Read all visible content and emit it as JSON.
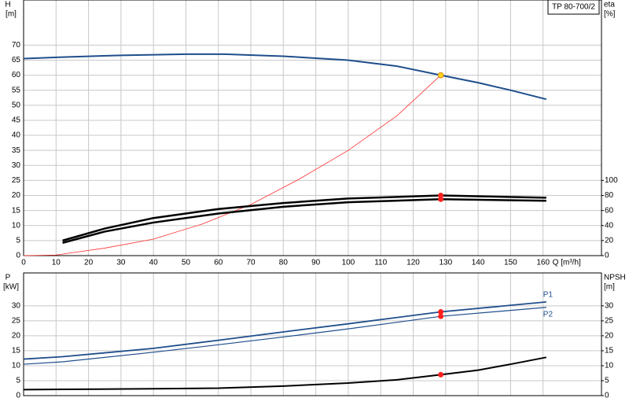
{
  "chart_data": [
    {
      "type": "line",
      "title": "TP 80-700/2",
      "y_label": "H",
      "y_unit": "[m]",
      "y2_label": "eta",
      "y2_unit": "[%]",
      "x_label": "Q [m³/h]",
      "xlim": [
        0,
        178
      ],
      "xticks": [
        0,
        10,
        20,
        30,
        40,
        50,
        60,
        70,
        80,
        90,
        100,
        110,
        120,
        130,
        140,
        150,
        160
      ],
      "ylim": [
        0,
        85
      ],
      "yticks": [
        0,
        5,
        10,
        15,
        20,
        25,
        30,
        35,
        40,
        45,
        50,
        55,
        60,
        65,
        70
      ],
      "y2lim": [
        0,
        340
      ],
      "y2ticks": [
        0,
        20,
        40,
        60,
        80,
        100
      ],
      "grid": true,
      "series": [
        {
          "color": "#1f4e8c",
          "width": 2,
          "x": [
            0,
            12,
            30,
            50,
            62,
            80,
            100,
            115,
            128.5,
            140,
            150,
            161
          ],
          "values": [
            65.5,
            66,
            66.6,
            67,
            67,
            66.3,
            65,
            63,
            60,
            57.5,
            55,
            52
          ]
        },
        {
          "color": "#ff3030",
          "width": 0.8,
          "x": [
            0,
            10,
            25,
            40,
            55,
            70,
            85,
            100,
            115,
            128.5
          ],
          "values": [
            0,
            0.2,
            2.5,
            5.5,
            10.5,
            17,
            25.5,
            35,
            46.5,
            60
          ]
        },
        {
          "color": "#000000",
          "width": 2.5,
          "axis": "y2",
          "x": [
            12,
            25,
            40,
            60,
            80,
            100,
            128.5,
            161
          ],
          "values": [
            20,
            36,
            50,
            62,
            70,
            76,
            80,
            77
          ]
        },
        {
          "color": "#000000",
          "width": 2.5,
          "axis": "y2",
          "x": [
            12,
            25,
            40,
            60,
            80,
            100,
            128.5,
            161
          ],
          "values": [
            17,
            32,
            44,
            56,
            65,
            71,
            75,
            73
          ]
        }
      ],
      "markers": [
        {
          "x": 128.5,
          "y": 60,
          "color": "#ffd020"
        },
        {
          "x": 128.5,
          "y": 80,
          "color": "#ff2020",
          "axis": "y2"
        },
        {
          "x": 128.5,
          "y": 75,
          "color": "#ff2020",
          "axis": "y2"
        }
      ]
    },
    {
      "type": "line",
      "y_label": "P",
      "y_unit": "[kW]",
      "y2_label": "NPSH",
      "y2_unit": "[m]",
      "xlim": [
        0,
        178
      ],
      "xticks": [
        0,
        10,
        20,
        30,
        40,
        50,
        60,
        70,
        80,
        90,
        100,
        110,
        120,
        130,
        140,
        150,
        160
      ],
      "ylim": [
        0,
        41
      ],
      "yticks": [
        0,
        5,
        10,
        15,
        20,
        25,
        30
      ],
      "y2lim": [
        0,
        41
      ],
      "y2ticks": [
        0,
        5,
        10,
        15,
        20,
        25,
        30
      ],
      "grid": true,
      "series": [
        {
          "name": "P1",
          "color": "#1f4e8c",
          "width": 1.8,
          "x": [
            0,
            12,
            40,
            60,
            80,
            100,
            128.5,
            161
          ],
          "values": [
            12.2,
            13,
            15.8,
            18.5,
            21.3,
            24,
            28,
            31.3
          ]
        },
        {
          "name": "P2",
          "color": "#1f4e8c",
          "width": 1.2,
          "x": [
            0,
            12,
            40,
            60,
            80,
            100,
            128.5,
            161
          ],
          "values": [
            10.5,
            11.3,
            14.5,
            17,
            19.6,
            22.3,
            26.5,
            29.5
          ]
        },
        {
          "color": "#000000",
          "width": 2,
          "axis": "y2",
          "x": [
            0,
            12,
            40,
            60,
            80,
            100,
            115,
            128.5,
            140,
            150,
            161
          ],
          "values": [
            2,
            2.1,
            2.3,
            2.5,
            3.2,
            4.2,
            5.3,
            7,
            8.5,
            10.5,
            12.8
          ]
        }
      ],
      "markers": [
        {
          "x": 128.5,
          "y": 28,
          "color": "#ff2020"
        },
        {
          "x": 128.5,
          "y": 26.5,
          "color": "#ff2020"
        },
        {
          "x": 128.5,
          "y": 7,
          "color": "#ff2020",
          "axis": "y2"
        }
      ]
    }
  ]
}
